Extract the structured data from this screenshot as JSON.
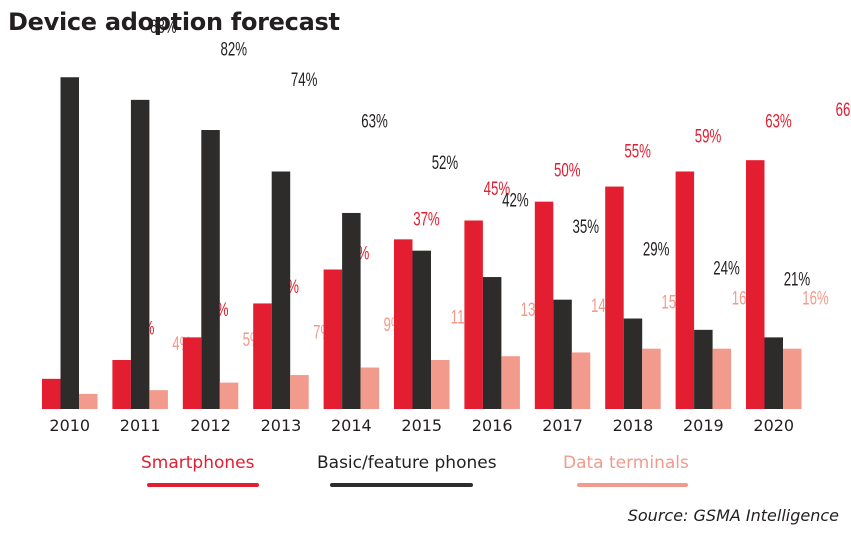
{
  "chart_data": {
    "type": "bar",
    "title": "Device adoption forecast",
    "xlabel": "",
    "ylabel": "",
    "ylim": [
      0,
      100
    ],
    "grid": false,
    "categories": [
      "2010",
      "2011",
      "2012",
      "2013",
      "2014",
      "2015",
      "2016",
      "2017",
      "2018",
      "2019",
      "2020"
    ],
    "series": [
      {
        "name": "Smartphones",
        "color": "#e31e30",
        "values": [
          8,
          13,
          19,
          28,
          37,
          45,
          50,
          55,
          59,
          63,
          66
        ]
      },
      {
        "name": "Basic/feature phones",
        "color": "#2d2c2b",
        "values": [
          88,
          82,
          74,
          63,
          52,
          42,
          35,
          29,
          24,
          21,
          19
        ]
      },
      {
        "name": "Data terminals",
        "color": "#f29a8c",
        "values": [
          4,
          5,
          7,
          9,
          11,
          13,
          14,
          15,
          16,
          16,
          16
        ]
      }
    ],
    "value_suffix": "%",
    "legend_position": "bottom",
    "source": "Source: GSMA Intelligence"
  }
}
